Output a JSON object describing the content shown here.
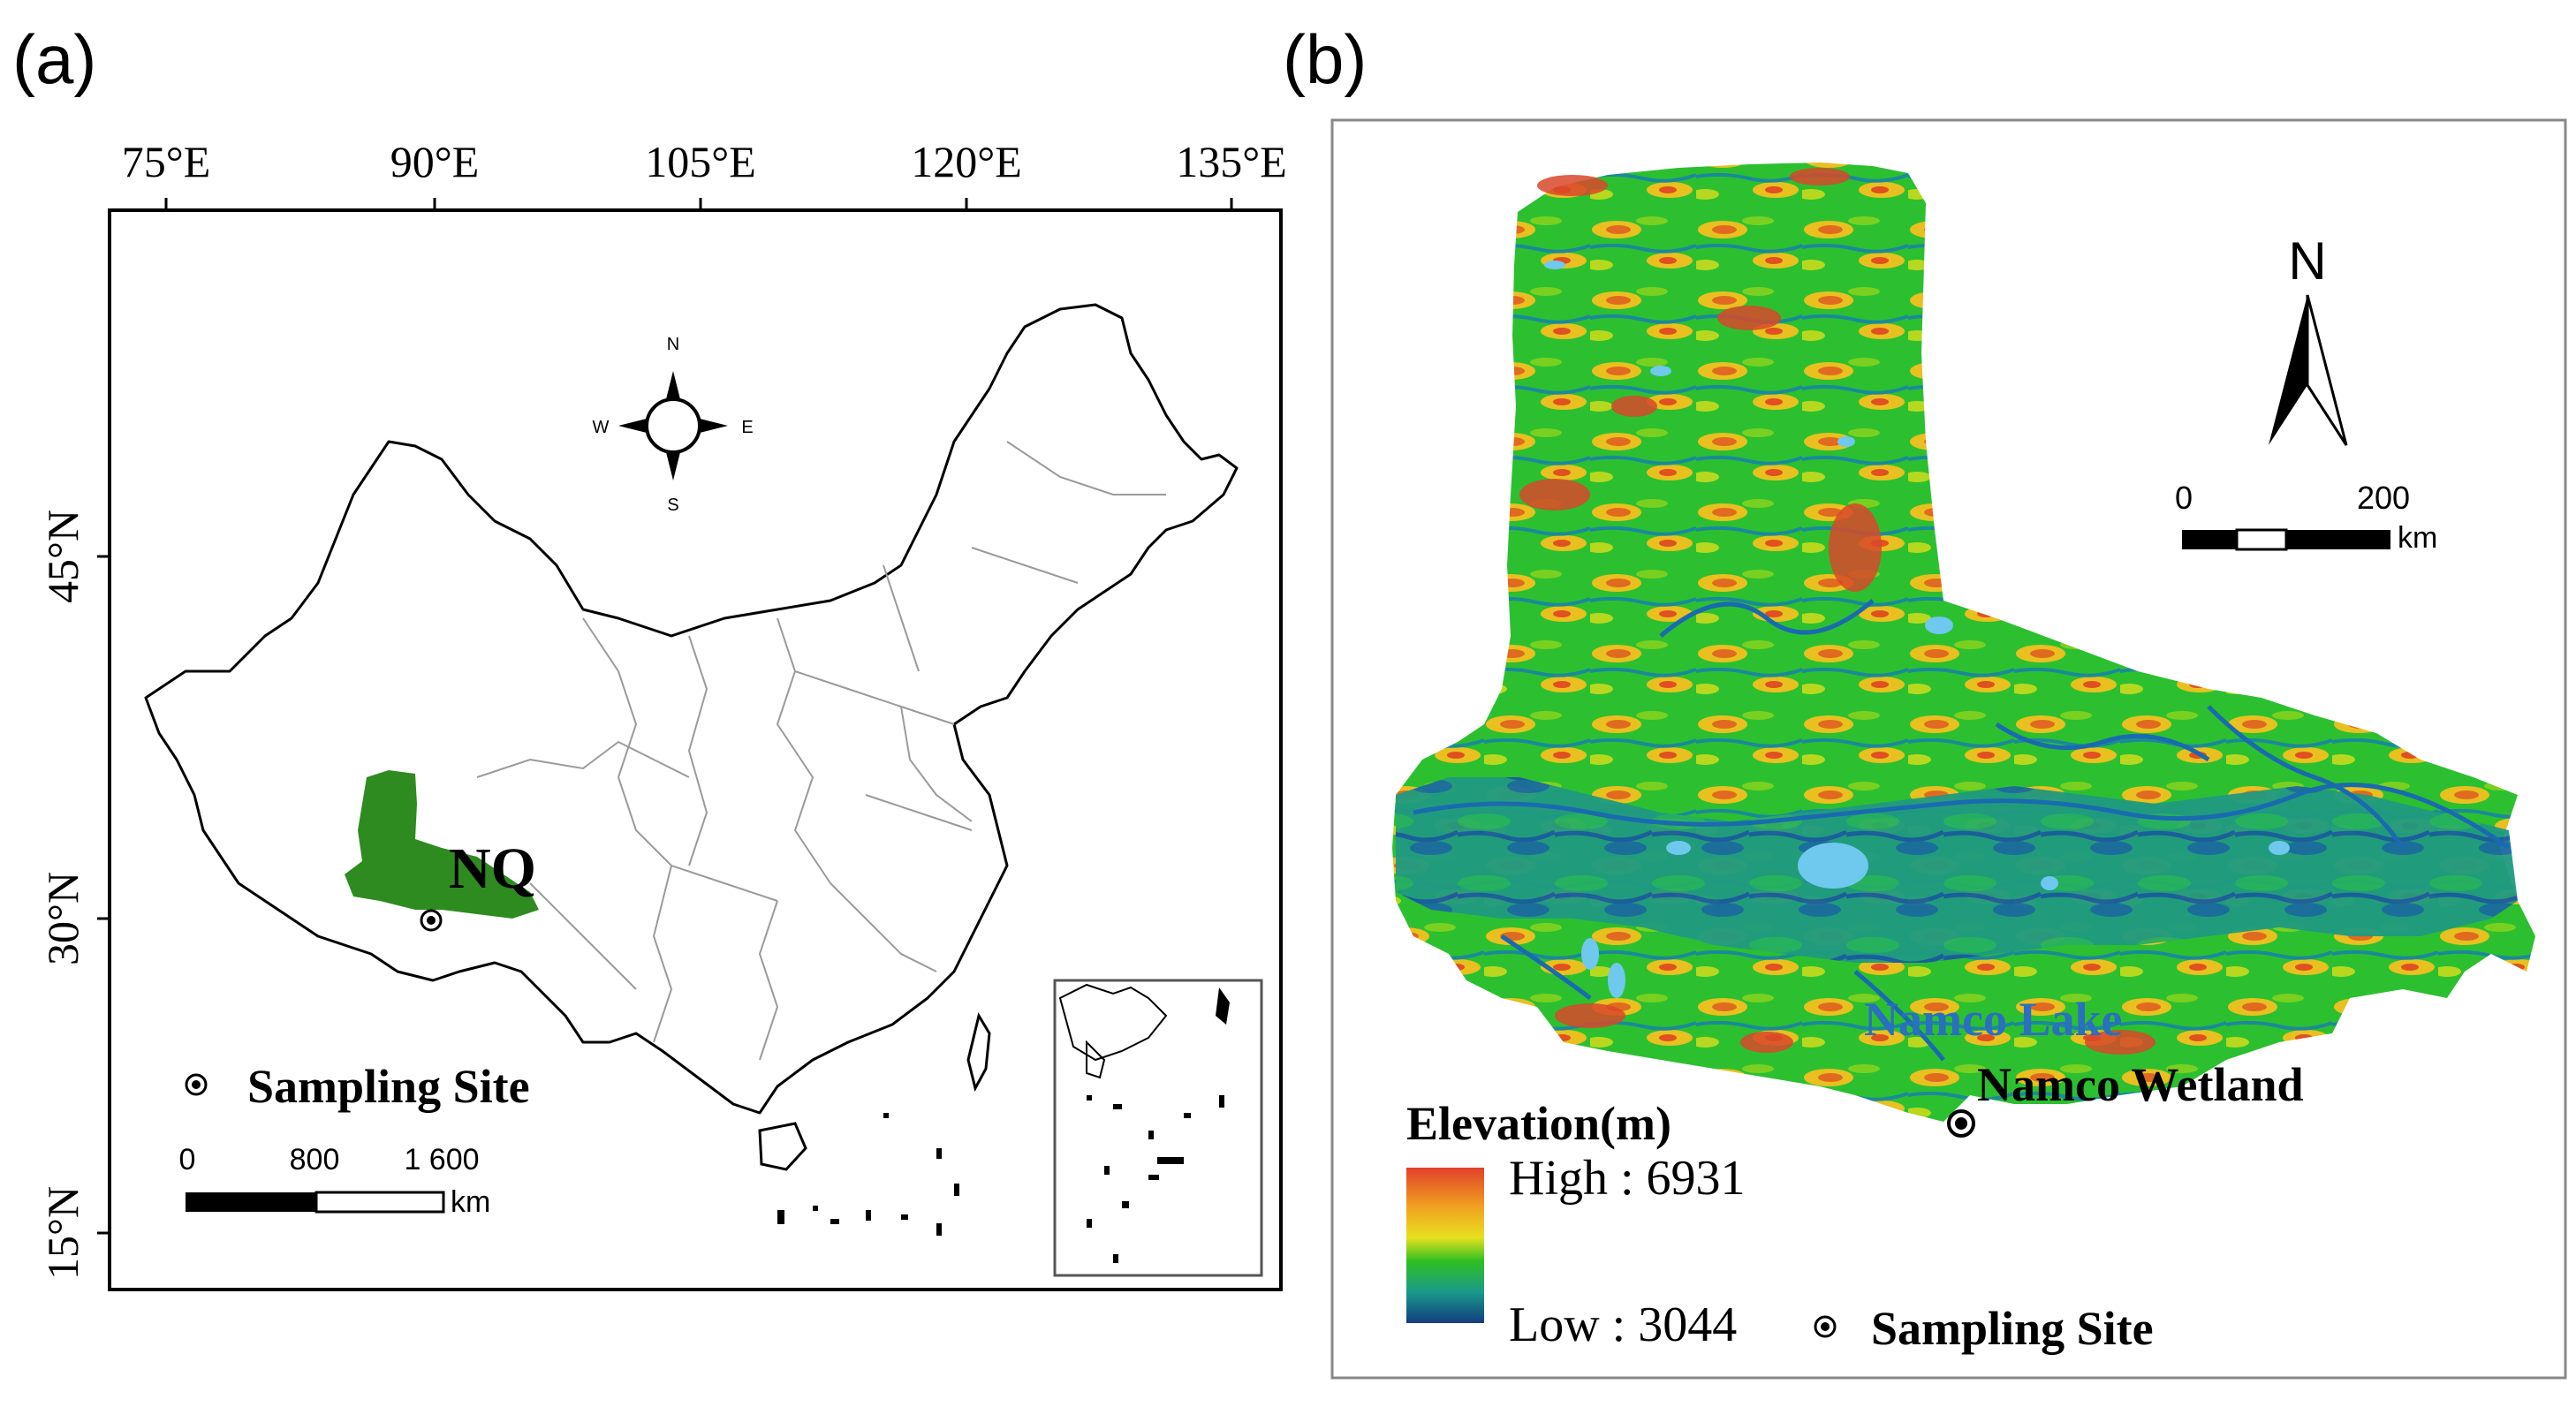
{
  "panel_a": {
    "label": "(a)",
    "lon_ticks": [
      "75°E",
      "90°E",
      "105°E",
      "120°E",
      "135°E"
    ],
    "lat_ticks": [
      "45°N",
      "30°N",
      "15°N"
    ],
    "compass": {
      "n": "N",
      "s": "S",
      "e": "E",
      "w": "W"
    },
    "region_label": "NQ",
    "legend_sampling": "Sampling Site",
    "scale": {
      "t0": "0",
      "t1": "800",
      "t2": "1 600",
      "unit": "km"
    },
    "colors": {
      "region": "#2e8b20",
      "border": "#000000",
      "province": "#9a9a9a"
    }
  },
  "panel_b": {
    "label": "(b)",
    "north": "N",
    "scale": {
      "t0": "0",
      "t1": "200",
      "unit": "km"
    },
    "lake_label": "Namco Lake",
    "wetland_label": "Namco Wetland",
    "elevation_title": "Elevation(m)",
    "high_label": "High : 6931",
    "low_label": "Low : 3044",
    "legend_sampling": "Sampling Site",
    "colors": {
      "high": "#e04020",
      "mid": "#20c020",
      "low": "#1a4a8a",
      "lake": "#6fc8ee",
      "lake_text": "#2a6fc0"
    }
  }
}
